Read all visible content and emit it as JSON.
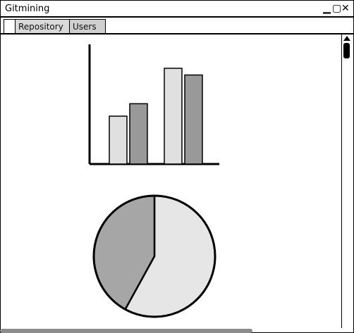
{
  "window": {
    "title": "Gitmining"
  },
  "controls": {
    "minimize": "▁",
    "maximize": "▢",
    "close": "✕"
  },
  "tabs": [
    {
      "label": "Repository",
      "selected": true
    },
    {
      "label": "Users",
      "selected": false
    }
  ],
  "chart_data": [
    {
      "type": "bar",
      "categories": [
        "",
        ""
      ],
      "series": [
        {
          "values": [
            0.5,
            1.0
          ],
          "color": "#e0e0e0"
        },
        {
          "values": [
            0.63,
            0.93
          ],
          "color": "#999999"
        }
      ],
      "ylim": [
        0,
        1.25
      ],
      "grid": false
    },
    {
      "type": "pie",
      "values": [
        0.58,
        0.42
      ],
      "colors": [
        "#e6e6e6",
        "#a6a6a6"
      ]
    }
  ]
}
